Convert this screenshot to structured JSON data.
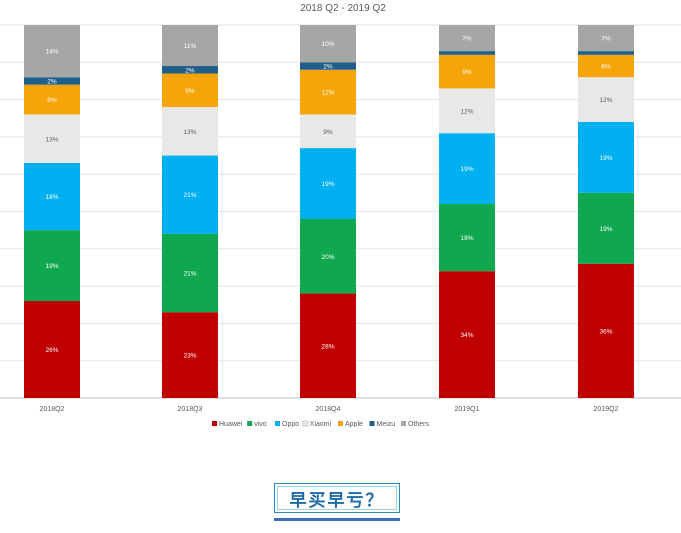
{
  "chart_data": {
    "type": "bar",
    "stacked": true,
    "normalized": true,
    "title": "2018 Q2 - 2019 Q2",
    "xlabel": "",
    "ylabel": "",
    "ylim": [
      0,
      100
    ],
    "grid": true,
    "legend_position": "bottom",
    "categories": [
      "2018Q2",
      "2018Q3",
      "2018Q4",
      "2019Q1",
      "2019Q2"
    ],
    "series": [
      {
        "name": "Huawei",
        "color": "#c00000",
        "values": [
          26,
          23,
          28,
          34,
          36
        ],
        "labels": [
          "26%",
          "23%",
          "28%",
          "34%",
          "36%"
        ]
      },
      {
        "name": "vivo",
        "color": "#0fa84f",
        "values": [
          19,
          21,
          20,
          18,
          19
        ],
        "labels": [
          "19%",
          "21%",
          "20%",
          "18%",
          "19%"
        ]
      },
      {
        "name": "Oppo",
        "color": "#00b0f0",
        "values": [
          18,
          21,
          19,
          19,
          19
        ],
        "labels": [
          "18%",
          "21%",
          "19%",
          "19%",
          "19%"
        ]
      },
      {
        "name": "Xiaomi",
        "color": "#e8e8e8",
        "values": [
          13,
          13,
          9,
          12,
          12
        ],
        "labels": [
          "13%",
          "13%",
          "9%",
          "12%",
          "12%"
        ]
      },
      {
        "name": "Apple",
        "color": "#f5a50a",
        "values": [
          8,
          9,
          12,
          9,
          6
        ],
        "labels": [
          "8%",
          "9%",
          "12%",
          "9%",
          "6%"
        ]
      },
      {
        "name": "Meizu",
        "color": "#1f5f8b",
        "values": [
          2,
          2,
          2,
          1,
          1
        ],
        "labels": [
          "2%",
          "2%",
          "2%",
          "1%",
          "1%"
        ]
      },
      {
        "name": "Others",
        "color": "#a6a6a6",
        "values": [
          14,
          11,
          10,
          7,
          7
        ],
        "labels": [
          "14%",
          "11%",
          "10%",
          "7%",
          "7%"
        ]
      }
    ]
  },
  "banner": {
    "text": "早买早亏？",
    "color": "#1c6aa6"
  }
}
